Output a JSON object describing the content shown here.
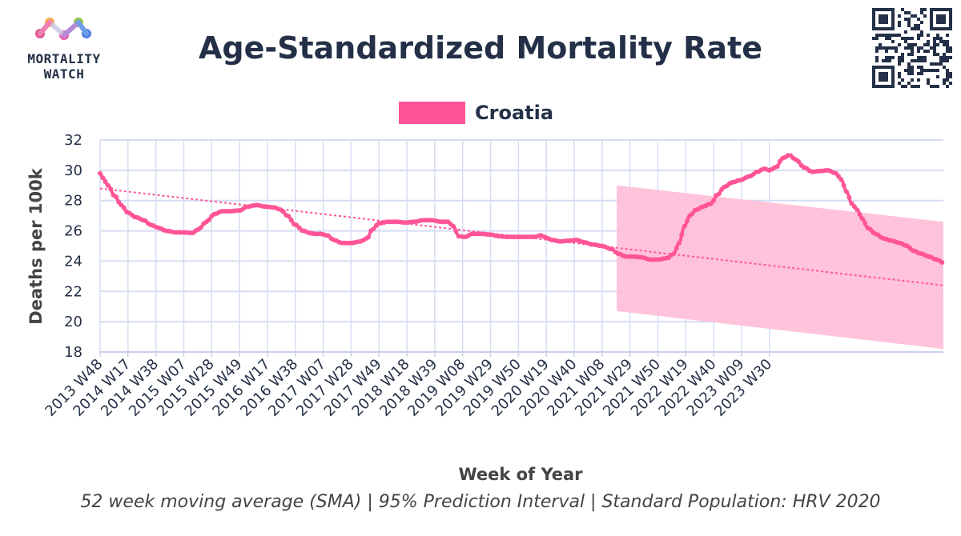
{
  "brand": {
    "logo_text_line1": "MORTALITY",
    "logo_text_line2": "WATCH"
  },
  "chart_data": {
    "type": "line",
    "title": "Age-Standardized Mortality Rate",
    "subtitle": "52 week moving average (SMA) | 95% Prediction Interval | Standard Population: HRV 2020",
    "xlabel": "Week of Year",
    "ylabel": "Deaths per 100k",
    "ylim": [
      18,
      32
    ],
    "yticks": [
      18,
      20,
      22,
      24,
      26,
      28,
      30,
      32
    ],
    "grid": true,
    "legend_position": "top-center",
    "x_tick_labels": [
      "2013 W48",
      "2014 W17",
      "2014 W38",
      "2015 W07",
      "2015 W28",
      "2015 W49",
      "2016 W17",
      "2016 W38",
      "2017 W07",
      "2017 W28",
      "2017 W49",
      "2018 W18",
      "2018 W39",
      "2019 W08",
      "2019 W29",
      "2019 W50",
      "2020 W19",
      "2020 W40",
      "2021 W08",
      "2021 W29",
      "2021 W50",
      "2022 W19",
      "2022 W40",
      "2023 W09",
      "2023 W30"
    ],
    "x_tick_index_spacing": 21,
    "x_total_points": 519,
    "colors": {
      "series": "#ff5596",
      "band": "#ffc0d9",
      "trend": "#ff5596",
      "grid": "#d6ddf2"
    },
    "series": [
      {
        "name": "Croatia",
        "anchors": [
          [
            0,
            29.8
          ],
          [
            2,
            29.5
          ],
          [
            6,
            29.0
          ],
          [
            11,
            28.3
          ],
          [
            16,
            27.7
          ],
          [
            21,
            27.2
          ],
          [
            27,
            26.9
          ],
          [
            33,
            26.7
          ],
          [
            38,
            26.4
          ],
          [
            44,
            26.2
          ],
          [
            50,
            26.0
          ],
          [
            57,
            25.9
          ],
          [
            63,
            25.9
          ],
          [
            69,
            25.85
          ],
          [
            74,
            26.1
          ],
          [
            80,
            26.6
          ],
          [
            86,
            27.1
          ],
          [
            92,
            27.3
          ],
          [
            98,
            27.3
          ],
          [
            105,
            27.35
          ],
          [
            111,
            27.6
          ],
          [
            118,
            27.7
          ],
          [
            124,
            27.6
          ],
          [
            131,
            27.55
          ],
          [
            136,
            27.4
          ],
          [
            141,
            27.0
          ],
          [
            147,
            26.4
          ],
          [
            153,
            26.0
          ],
          [
            158,
            25.85
          ],
          [
            162,
            25.8
          ],
          [
            166,
            25.8
          ],
          [
            171,
            25.7
          ],
          [
            176,
            25.4
          ],
          [
            182,
            25.2
          ],
          [
            189,
            25.2
          ],
          [
            196,
            25.3
          ],
          [
            201,
            25.5
          ],
          [
            205,
            26.1
          ],
          [
            210,
            26.5
          ],
          [
            217,
            26.6
          ],
          [
            223,
            26.6
          ],
          [
            230,
            26.55
          ],
          [
            237,
            26.6
          ],
          [
            243,
            26.7
          ],
          [
            250,
            26.7
          ],
          [
            257,
            26.6
          ],
          [
            262,
            26.6
          ],
          [
            266,
            26.3
          ],
          [
            270,
            25.65
          ],
          [
            275,
            25.6
          ],
          [
            280,
            25.8
          ],
          [
            287,
            25.8
          ],
          [
            294,
            25.75
          ],
          [
            300,
            25.65
          ],
          [
            306,
            25.6
          ],
          [
            313,
            25.6
          ],
          [
            320,
            25.6
          ],
          [
            327,
            25.6
          ],
          [
            332,
            25.7
          ],
          [
            336,
            25.55
          ],
          [
            340,
            25.4
          ],
          [
            347,
            25.3
          ],
          [
            353,
            25.35
          ],
          [
            359,
            25.4
          ],
          [
            364,
            25.25
          ],
          [
            371,
            25.1
          ],
          [
            378,
            25.0
          ],
          [
            385,
            24.8
          ],
          [
            390,
            24.5
          ],
          [
            396,
            24.3
          ],
          [
            402,
            24.3
          ],
          [
            408,
            24.25
          ],
          [
            414,
            24.1
          ],
          [
            420,
            24.1
          ],
          [
            427,
            24.2
          ],
          [
            432,
            24.5
          ],
          [
            436,
            25.2
          ],
          [
            440,
            26.3
          ],
          [
            444,
            27.0
          ],
          [
            449,
            27.4
          ],
          [
            454,
            27.6
          ],
          [
            460,
            27.8
          ],
          [
            465,
            28.4
          ],
          [
            470,
            28.9
          ],
          [
            476,
            29.2
          ],
          [
            482,
            29.35
          ],
          [
            489,
            29.6
          ],
          [
            495,
            29.9
          ],
          [
            500,
            30.1
          ],
          [
            504,
            30.0
          ],
          [
            509,
            30.2
          ],
          [
            514,
            30.8
          ],
          [
            519,
            31.0
          ],
          [
            524,
            30.7
          ],
          [
            530,
            30.2
          ],
          [
            536,
            29.9
          ],
          [
            542,
            29.95
          ],
          [
            548,
            30.0
          ],
          [
            554,
            29.8
          ],
          [
            558,
            29.4
          ],
          [
            562,
            28.6
          ],
          [
            566,
            27.8
          ],
          [
            570,
            27.4
          ],
          [
            574,
            26.8
          ],
          [
            578,
            26.2
          ],
          [
            584,
            25.8
          ],
          [
            590,
            25.5
          ],
          [
            596,
            25.35
          ],
          [
            602,
            25.2
          ],
          [
            608,
            25.0
          ],
          [
            612,
            24.7
          ],
          [
            618,
            24.5
          ],
          [
            624,
            24.3
          ],
          [
            630,
            24.1
          ],
          [
            635,
            23.9
          ]
        ]
      }
    ],
    "trend_line": {
      "x": [
        0,
        635
      ],
      "y": [
        28.8,
        22.4
      ]
    },
    "prediction_interval": {
      "x": [
        389,
        635
      ],
      "upper": [
        29.0,
        26.6
      ],
      "lower": [
        20.7,
        18.2
      ]
    }
  }
}
